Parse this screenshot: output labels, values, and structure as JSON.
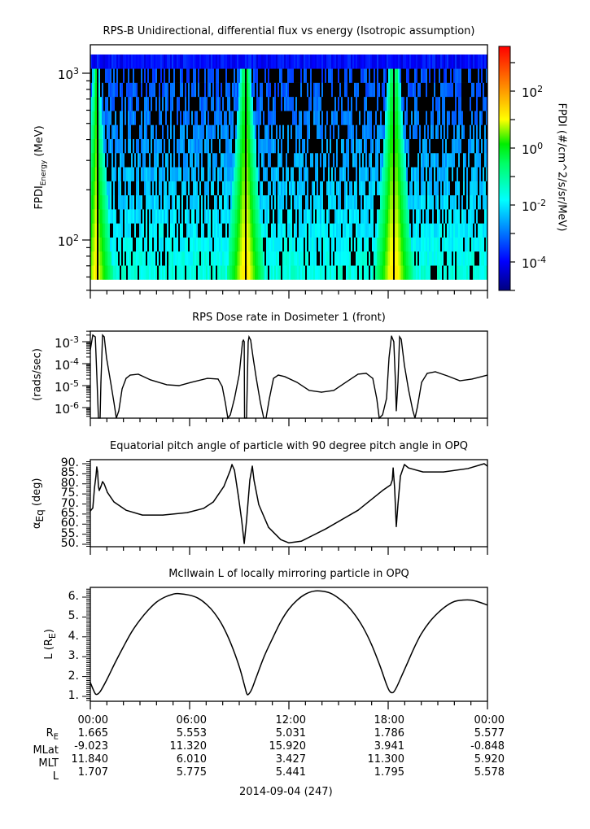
{
  "chart_data": [
    {
      "type": "heatmap",
      "title": "RPS-B  Unidirectional, differential flux vs energy (Isotropic assumption)",
      "ylabel_main": "FPDI",
      "ylabel_sub": "Energy",
      "ylabel_unit": "(MeV)",
      "yscale": "log",
      "ylim": [
        50,
        1500
      ],
      "yticks": [
        {
          "value": 100,
          "base": "10",
          "exp": "2"
        },
        {
          "value": 1000,
          "base": "10",
          "exp": "3"
        }
      ],
      "x_hours_range": [
        0,
        24
      ],
      "energy_range_mev": [
        58,
        1295
      ],
      "energy_bins": 16,
      "belt_crossings_hours": [
        0.35,
        9.25,
        9.5,
        18.2,
        18.5
      ],
      "colorbar": {
        "label": "FPDI (#/cm^2/s/sr/MeV)",
        "scale": "log",
        "range_log10": [
          -5,
          3.57
        ],
        "ticks": [
          {
            "log": 2,
            "base": "10",
            "exp": "2"
          },
          {
            "log": 0,
            "base": "10",
            "exp": "0"
          },
          {
            "log": -2,
            "base": "10",
            "exp": "-2"
          },
          {
            "log": -4,
            "base": "10",
            "exp": "-4"
          }
        ]
      }
    },
    {
      "type": "line",
      "title": "RPS  Dose rate in Dosimeter 1 (front)",
      "ylabel": "(rads/sec)",
      "yscale": "log",
      "ylim_log10": [
        -6.48,
        -2.52
      ],
      "yticks": [
        {
          "log": -3,
          "base": "10",
          "exp": "-3"
        },
        {
          "log": -4,
          "base": "10",
          "exp": "-4"
        },
        {
          "log": -5,
          "base": "10",
          "exp": "-5"
        },
        {
          "log": -6,
          "base": "10",
          "exp": "-6"
        }
      ],
      "x_hours": [
        0,
        0.15,
        0.3,
        0.39,
        0.49,
        0.59,
        0.64,
        0.74,
        0.84,
        0.98,
        1.23,
        1.43,
        1.57,
        1.72,
        1.92,
        2.16,
        2.41,
        2.9,
        3.64,
        4.62,
        5.36,
        6.1,
        7.08,
        7.72,
        7.97,
        8.16,
        8.31,
        8.46,
        8.71,
        9.0,
        9.1,
        9.2,
        9.25,
        9.3,
        9.32,
        9.44,
        9.54,
        9.59,
        9.69,
        9.84,
        10.03,
        10.28,
        10.48,
        10.62,
        10.82,
        11.07,
        11.36,
        11.75,
        12.49,
        13.23,
        13.97,
        14.71,
        15.44,
        16.18,
        16.67,
        17.07,
        17.31,
        17.46,
        17.66,
        17.9,
        18.05,
        18.2,
        18.34,
        18.44,
        18.49,
        18.59,
        18.69,
        18.79,
        18.98,
        19.23,
        19.48,
        19.62,
        19.77,
        20.02,
        20.36,
        20.85,
        21.59,
        22.33,
        23.07,
        24.0
      ],
      "y_log10": [
        -3.37,
        -2.7,
        -2.78,
        -4.48,
        -6.48,
        -6.48,
        -4.85,
        -2.7,
        -2.78,
        -3.74,
        -4.85,
        -5.78,
        -6.48,
        -6.15,
        -5.15,
        -4.67,
        -4.52,
        -4.48,
        -4.74,
        -4.96,
        -5.0,
        -4.85,
        -4.67,
        -4.7,
        -5.04,
        -5.78,
        -6.48,
        -6.33,
        -5.59,
        -4.48,
        -3.74,
        -3.0,
        -2.93,
        -3.0,
        -6.48,
        -6.48,
        -3.0,
        -2.78,
        -2.93,
        -3.74,
        -4.67,
        -5.78,
        -6.48,
        -6.48,
        -5.59,
        -4.67,
        -4.52,
        -4.59,
        -4.85,
        -5.22,
        -5.3,
        -5.22,
        -4.85,
        -4.48,
        -4.44,
        -4.67,
        -5.59,
        -6.48,
        -6.33,
        -5.59,
        -3.74,
        -2.74,
        -3.0,
        -4.85,
        -6.15,
        -4.85,
        -2.78,
        -2.89,
        -4.07,
        -5.18,
        -6.11,
        -6.48,
        -5.96,
        -4.85,
        -4.44,
        -4.37,
        -4.56,
        -4.78,
        -4.7,
        -4.52
      ]
    },
    {
      "type": "line",
      "title": "Equatorial pitch angle of particle with 90 degree pitch angle in OPQ",
      "ylabel_main": "α",
      "ylabel_sub": "Eq",
      "ylabel_unit": "(deg)",
      "ylim": [
        48.8,
        92.0
      ],
      "yticks": [
        "90.",
        "85.",
        "80.",
        "75.",
        "70.",
        "65.",
        "60.",
        "55.",
        "50."
      ],
      "ytick_values": [
        90,
        85,
        80,
        75,
        70,
        65,
        60,
        55,
        50
      ],
      "x_hours": [
        0,
        0.15,
        0.25,
        0.34,
        0.39,
        0.44,
        0.49,
        0.54,
        0.64,
        0.74,
        0.84,
        1.03,
        1.43,
        2.16,
        3.15,
        4.38,
        5.85,
        6.84,
        7.43,
        8.07,
        8.46,
        8.56,
        8.71,
        8.95,
        9.15,
        9.3,
        9.44,
        9.64,
        9.79,
        9.89,
        10.18,
        10.77,
        11.51,
        12.0,
        12.74,
        14.22,
        16.18,
        17.66,
        18.15,
        18.25,
        18.3,
        18.39,
        18.49,
        18.59,
        18.74,
        18.98,
        19.23,
        20.11,
        21.34,
        22.82,
        23.8,
        24.0
      ],
      "y": [
        66.5,
        68.0,
        77.9,
        83.9,
        88.4,
        86.0,
        78.7,
        76.7,
        78.7,
        81.1,
        79.9,
        75.8,
        71.0,
        66.9,
        64.5,
        64.5,
        65.7,
        67.8,
        71.0,
        78.7,
        86.8,
        89.6,
        86.8,
        73.8,
        61.7,
        50.4,
        61.7,
        81.9,
        88.8,
        81.9,
        69.7,
        58.4,
        52.3,
        50.7,
        51.5,
        57.6,
        66.9,
        76.7,
        79.5,
        81.9,
        87.9,
        77.9,
        58.8,
        69.7,
        83.9,
        89.6,
        87.9,
        85.9,
        85.9,
        87.6,
        90.0,
        88.8
      ]
    },
    {
      "type": "line",
      "title": "McIlwain L of locally mirroring particle in OPQ",
      "ylabel_main": "L (R",
      "ylabel_sub": "E",
      "ylabel_unit": ")",
      "ylim": [
        0.75,
        6.49
      ],
      "yticks": [
        "6.",
        "5.",
        "4.",
        "3.",
        "2.",
        "1."
      ],
      "ytick_values": [
        6,
        5,
        4,
        3,
        2,
        1
      ],
      "x_hours": [
        0,
        0.2,
        0.35,
        0.6,
        1,
        1.5,
        2,
        2.5,
        3,
        3.5,
        4,
        4.5,
        5,
        5.3,
        6,
        6.5,
        7,
        7.5,
        8,
        8.5,
        9,
        9.3,
        9.45,
        9.55,
        9.75,
        10,
        10.5,
        11,
        11.5,
        12,
        12.5,
        13,
        13.5,
        14,
        14.5,
        15,
        15.5,
        16,
        16.5,
        17,
        17.5,
        17.9,
        18.1,
        18.3,
        18.5,
        18.8,
        19.2,
        19.6,
        20,
        20.5,
        21,
        21.5,
        22,
        22.5,
        23,
        23.5,
        24
      ],
      "y": [
        1.7,
        1.3,
        1.1,
        1.25,
        1.85,
        2.7,
        3.5,
        4.25,
        4.85,
        5.35,
        5.75,
        6.0,
        6.15,
        6.18,
        6.1,
        5.95,
        5.65,
        5.2,
        4.55,
        3.65,
        2.5,
        1.6,
        1.15,
        1.1,
        1.35,
        1.9,
        3.0,
        3.9,
        4.75,
        5.4,
        5.85,
        6.15,
        6.3,
        6.3,
        6.2,
        5.95,
        5.6,
        5.1,
        4.45,
        3.6,
        2.55,
        1.6,
        1.25,
        1.2,
        1.45,
        2.0,
        2.75,
        3.5,
        4.15,
        4.75,
        5.2,
        5.55,
        5.78,
        5.85,
        5.85,
        5.75,
        5.6
      ]
    }
  ],
  "annotations": {
    "row_labels": {
      "re_main": "R",
      "re_sub": "E",
      "mlat": "MLat",
      "mlt": "MLT",
      "l": "L"
    },
    "columns": [
      {
        "time": "00:00",
        "re": "1.665",
        "mlat": "-9.023",
        "mlt": "11.840",
        "l": "1.707"
      },
      {
        "time": "06:00",
        "re": "5.553",
        "mlat": "11.320",
        "mlt": "6.010",
        "l": "5.775"
      },
      {
        "time": "12:00",
        "re": "5.031",
        "mlat": "15.920",
        "mlt": "3.427",
        "l": "5.441"
      },
      {
        "time": "18:00",
        "re": "1.786",
        "mlat": "3.941",
        "mlt": "11.300",
        "l": "1.795"
      },
      {
        "time": "00:00",
        "re": "5.577",
        "mlat": "-0.848",
        "mlt": "5.920",
        "l": "5.578"
      }
    ],
    "date": "2014-09-04 (247)"
  }
}
